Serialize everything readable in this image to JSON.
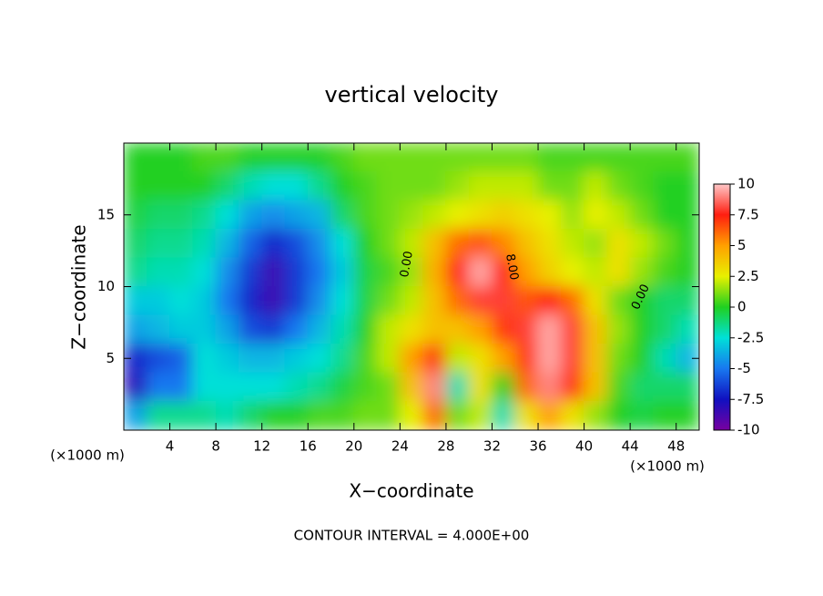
{
  "chart_data": {
    "type": "heatmap",
    "title": "vertical velocity",
    "x_label": "X−coordinate",
    "y_label": "Z−coordinate",
    "x_unit_labels": [
      "(×1000 m)",
      "(×1000 m)"
    ],
    "footer": "CONTOUR INTERVAL = 4.000E+00",
    "annotations": [
      "0.00",
      "8.00",
      "0.00"
    ],
    "xlim": [
      0,
      50
    ],
    "ylim": [
      0,
      20
    ],
    "xticks": [
      4,
      8,
      12,
      16,
      20,
      24,
      28,
      32,
      36,
      40,
      44,
      48
    ],
    "yticks": [
      5,
      10,
      15
    ],
    "x": [
      1,
      3,
      5,
      7,
      9,
      11,
      13,
      15,
      17,
      19,
      21,
      23,
      25,
      27,
      29,
      31,
      33,
      35,
      37,
      39,
      41,
      43,
      45,
      47,
      49
    ],
    "y": [
      19,
      17,
      15,
      13,
      11,
      9,
      7,
      5,
      3,
      1
    ],
    "values": [
      [
        0,
        0,
        0,
        0.5,
        0.5,
        0,
        0,
        0,
        0,
        0.5,
        1,
        1,
        1,
        1,
        1,
        1,
        1,
        1,
        0.5,
        0.5,
        0.5,
        0.5,
        0.5,
        0.5,
        0.5
      ],
      [
        0,
        0,
        0,
        0,
        -1,
        -2,
        -2.5,
        -2.5,
        -1.5,
        0,
        0.5,
        1,
        1,
        1,
        1.5,
        2,
        2,
        2,
        1,
        1,
        2,
        1,
        0.5,
        0,
        0
      ],
      [
        -0.5,
        -1,
        -1,
        -1.5,
        -2.5,
        -4,
        -4.5,
        -4,
        -3.5,
        -1,
        0.5,
        1,
        1.5,
        2,
        2.5,
        3,
        3.5,
        3,
        2.5,
        1.5,
        2.5,
        2,
        1,
        0,
        0
      ],
      [
        -1,
        -1.5,
        -1.5,
        -2,
        -3.5,
        -5.5,
        -7,
        -6,
        -4.5,
        -2.5,
        0,
        1,
        2,
        4,
        6,
        6.5,
        5.5,
        4,
        3,
        2,
        1.5,
        3,
        2,
        1,
        0
      ],
      [
        -1.5,
        -2,
        -2,
        -2.5,
        -4.5,
        -6.5,
        -8.5,
        -6.5,
        -5,
        -3,
        -0.5,
        0.5,
        1.5,
        4.5,
        7.5,
        9.5,
        7.5,
        5,
        3.5,
        2.5,
        2,
        3,
        1.5,
        0.5,
        0
      ],
      [
        -3,
        -3,
        -2.5,
        -3,
        -5,
        -7,
        -8.5,
        -6.5,
        -4.5,
        -2.5,
        -0.5,
        1,
        2,
        4,
        6,
        8,
        8,
        6.5,
        7.5,
        6,
        3,
        1,
        0,
        -1,
        -1
      ],
      [
        -4,
        -3.5,
        -3,
        -3,
        -4,
        -6,
        -6.5,
        -5,
        -3.5,
        -2,
        0,
        2,
        3,
        4,
        4,
        5,
        7,
        8,
        9.5,
        8,
        4,
        1.5,
        0,
        -1,
        -2
      ],
      [
        -7,
        -6,
        -5.5,
        -2.5,
        -3,
        -3.5,
        -3.5,
        -3,
        -2.5,
        -1.5,
        0.5,
        2,
        5,
        7,
        2,
        3,
        5,
        7,
        9.5,
        8,
        4,
        1,
        0,
        -2,
        -3.5
      ],
      [
        -8,
        -5,
        -5,
        -2.5,
        -2.5,
        -2.5,
        -2.5,
        -2,
        -1.5,
        -0.5,
        0.5,
        1,
        4,
        9,
        -2,
        3,
        0,
        6,
        9,
        7,
        4,
        0.5,
        -1,
        -1,
        -1
      ],
      [
        -4,
        -1.5,
        -1.5,
        -1.5,
        -2,
        -1,
        0,
        0,
        0.5,
        0.5,
        1,
        1,
        2.5,
        6,
        1,
        2,
        -2,
        3,
        5,
        3,
        1.5,
        0,
        -0.5,
        0,
        0
      ]
    ],
    "colorbar_ticks": [
      10,
      7.5,
      5,
      2.5,
      0,
      -2.5,
      -5,
      -7.5,
      -10
    ],
    "colors": [
      "#ffc8c8",
      "#ff1e10",
      "#ffa000",
      "#e8f000",
      "#20d020",
      "#00e0d8",
      "#1878f0",
      "#1010c0",
      "#7800a0"
    ]
  }
}
